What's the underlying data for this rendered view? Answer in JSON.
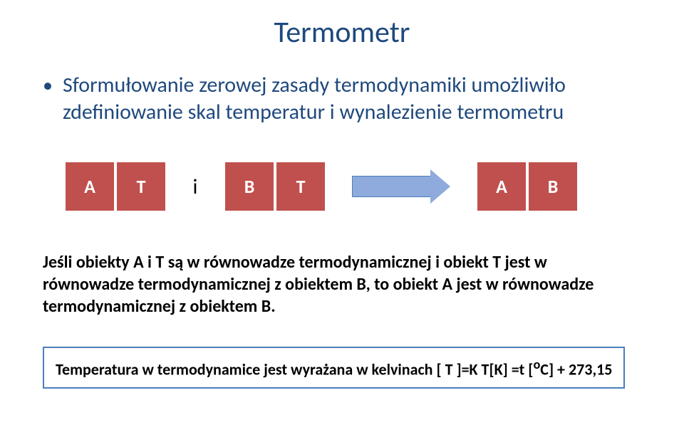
{
  "title": {
    "text": "Termometr",
    "color": "#1f497d",
    "fontsize": 42
  },
  "bullet": {
    "dot": "•",
    "text": "Sformułowanie zerowej zasady termodynamiki umożliwiło zdefiniowanie skal temperatur i wynalezienie termometru",
    "color": "#1f497d",
    "fontsize": 30
  },
  "diagram": {
    "box_bg": "#c0504d",
    "box_border": "#ffffff",
    "box_border_width": 2,
    "box_text_color": "#ffffff",
    "box_fontsize": 26,
    "group1": [
      "A",
      "T"
    ],
    "sep": "i",
    "sep_color": "#000000",
    "group2": [
      "B",
      "T"
    ],
    "arrow_fill": "#8faadc",
    "arrow_border": "#4a7ebb",
    "arrow_body_width": 110,
    "group3": [
      "A",
      "B"
    ]
  },
  "explain": {
    "text_parts": [
      "Jeśli obiekty A i T są w równowadze termodynamicznej i obiekt T jest w równowadze termodynamicznej z obiektem B, to obiekt A jest w równowadze termodynamicznej z obiektem B."
    ],
    "color": "#000000",
    "fontsize": 24,
    "weight": 700
  },
  "footer": {
    "text_prefix": "Temperatura w termodynamice jest wyrażana w kelvinach [ T ]=K     T[K] =t [",
    "sup": "o",
    "text_suffix": "C] + 273,15",
    "color": "#000000",
    "border_color": "#4a7ebb",
    "fontsize": 22,
    "weight": 700
  }
}
